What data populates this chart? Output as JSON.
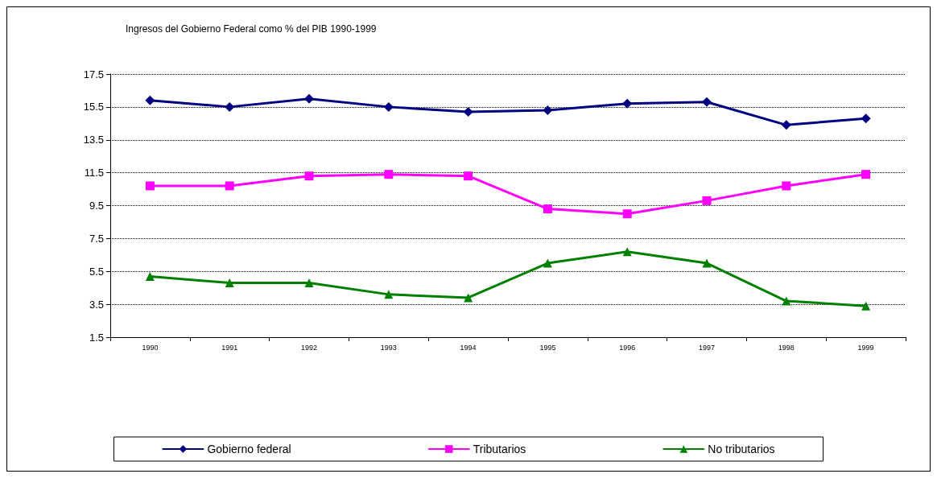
{
  "chart_data": {
    "type": "line",
    "title": "Ingresos del Gobierno Federal como % del PIB 1990-1999",
    "categories": [
      "1990",
      "1991",
      "1992",
      "1993",
      "1994",
      "1995",
      "1996",
      "1997",
      "1998",
      "1999"
    ],
    "series": [
      {
        "name": "Gobierno federal",
        "color": "#000080",
        "marker": "diamond",
        "values": [
          15.9,
          15.5,
          16.0,
          15.5,
          15.2,
          15.3,
          15.7,
          15.8,
          14.4,
          14.8
        ]
      },
      {
        "name": "Tributarios",
        "color": "#ff00ff",
        "marker": "square",
        "values": [
          10.7,
          10.7,
          11.3,
          11.4,
          11.3,
          9.3,
          9.0,
          9.8,
          10.7,
          11.4
        ]
      },
      {
        "name": "No tributarios",
        "color": "#008000",
        "marker": "triangle",
        "values": [
          5.2,
          4.8,
          4.8,
          4.1,
          3.9,
          6.0,
          6.7,
          6.0,
          3.7,
          3.4
        ]
      }
    ],
    "ylim": [
      1.5,
      17.5
    ],
    "yticks": [
      1.5,
      3.5,
      5.5,
      7.5,
      9.5,
      11.5,
      13.5,
      15.5,
      17.5
    ],
    "grid": "y",
    "legend": "bottom",
    "line_style": "solid"
  }
}
